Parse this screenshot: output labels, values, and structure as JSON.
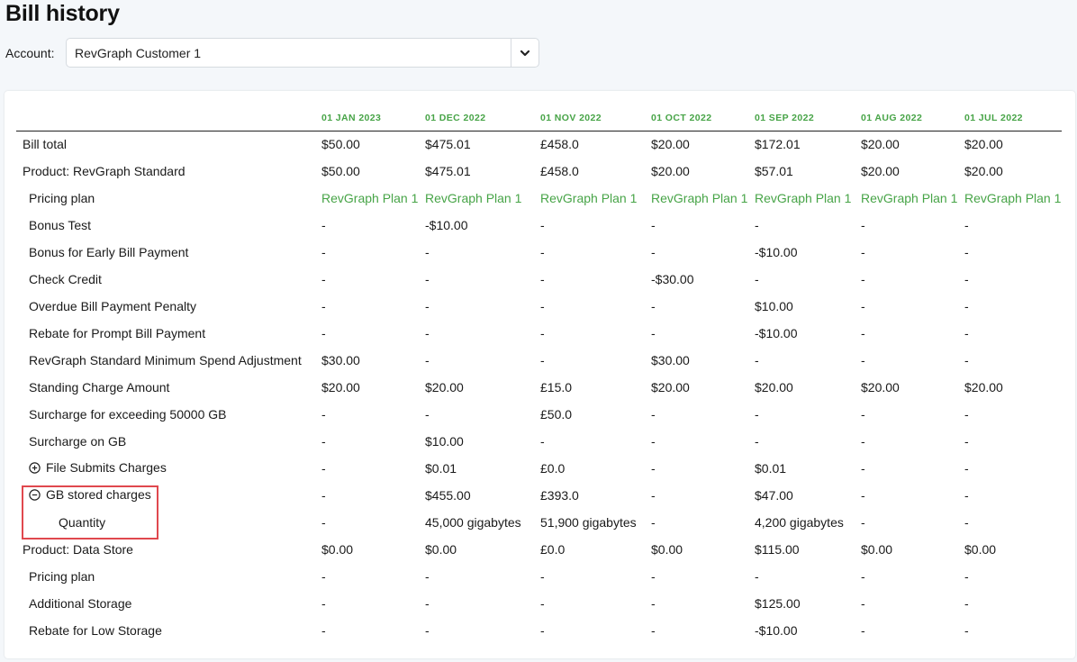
{
  "page": {
    "title": "Bill history"
  },
  "account": {
    "label": "Account:",
    "value": "RevGraph Customer 1"
  },
  "table": {
    "columns": [
      "01 JAN 2023",
      "01 DEC 2022",
      "01 NOV 2022",
      "01 OCT 2022",
      "01 SEP 2022",
      "01 AUG 2022",
      "01 JUL 2022"
    ],
    "rows": [
      {
        "label": "Bill total",
        "level": 0,
        "cells": [
          "$50.00",
          "$475.01",
          "£458.0",
          "$20.00",
          "$172.01",
          "$20.00",
          "$20.00"
        ]
      },
      {
        "label": "Product: RevGraph Standard",
        "level": 0,
        "cells": [
          "$50.00",
          "$475.01",
          "£458.0",
          "$20.00",
          "$57.01",
          "$20.00",
          "$20.00"
        ]
      },
      {
        "label": "Pricing plan",
        "level": 1,
        "link": true,
        "cells": [
          "RevGraph Plan 1",
          "RevGraph Plan 1",
          "RevGraph Plan 1",
          "RevGraph Plan 1",
          "RevGraph Plan 1",
          "RevGraph Plan 1",
          "RevGraph Plan 1"
        ]
      },
      {
        "label": "Bonus Test",
        "level": 1,
        "cells": [
          "-",
          "-$10.00",
          "-",
          "-",
          "-",
          "-",
          "-"
        ]
      },
      {
        "label": "Bonus for Early Bill Payment",
        "level": 1,
        "cells": [
          "-",
          "-",
          "-",
          "-",
          "-$10.00",
          "-",
          "-"
        ]
      },
      {
        "label": "Check Credit",
        "level": 1,
        "cells": [
          "-",
          "-",
          "-",
          "-$30.00",
          "-",
          "-",
          "-"
        ]
      },
      {
        "label": "Overdue Bill Payment Penalty",
        "level": 1,
        "cells": [
          "-",
          "-",
          "-",
          "-",
          "$10.00",
          "-",
          "-"
        ]
      },
      {
        "label": "Rebate for Prompt Bill Payment",
        "level": 1,
        "cells": [
          "-",
          "-",
          "-",
          "-",
          "-$10.00",
          "-",
          "-"
        ]
      },
      {
        "label": "RevGraph Standard Minimum Spend Adjustment",
        "level": 1,
        "cells": [
          "$30.00",
          "-",
          "-",
          "$30.00",
          "-",
          "-",
          "-"
        ]
      },
      {
        "label": "Standing Charge Amount",
        "level": 1,
        "cells": [
          "$20.00",
          "$20.00",
          "£15.0",
          "$20.00",
          "$20.00",
          "$20.00",
          "$20.00"
        ]
      },
      {
        "label": "Surcharge for exceeding 50000 GB",
        "level": 1,
        "cells": [
          "-",
          "-",
          "£50.0",
          "-",
          "-",
          "-",
          "-"
        ]
      },
      {
        "label": "Surcharge on GB",
        "level": 1,
        "cells": [
          "-",
          "$10.00",
          "-",
          "-",
          "-",
          "-",
          "-"
        ]
      },
      {
        "label": "File Submits Charges",
        "level": 1,
        "expander": "expand",
        "cells": [
          "-",
          "$0.01",
          "£0.0",
          "-",
          "$0.01",
          "-",
          "-"
        ]
      },
      {
        "label": "GB stored charges",
        "level": 1,
        "expander": "collapse",
        "cells": [
          "-",
          "$455.00",
          "£393.0",
          "-",
          "$47.00",
          "-",
          "-"
        ]
      },
      {
        "label": "Quantity",
        "level": 2,
        "cells": [
          "-",
          "45,000 gigabytes",
          "51,900 gigabytes",
          "-",
          "4,200 gigabytes",
          "-",
          "-"
        ]
      },
      {
        "label": "Product: Data Store",
        "level": 0,
        "cells": [
          "$0.00",
          "$0.00",
          "£0.0",
          "$0.00",
          "$115.00",
          "$0.00",
          "$0.00"
        ]
      },
      {
        "label": "Pricing plan",
        "level": 1,
        "cells": [
          "-",
          "-",
          "-",
          "-",
          "-",
          "-",
          "-"
        ]
      },
      {
        "label": "Additional Storage",
        "level": 1,
        "cells": [
          "-",
          "-",
          "-",
          "-",
          "$125.00",
          "-",
          "-"
        ]
      },
      {
        "label": "Rebate for Low Storage",
        "level": 1,
        "cells": [
          "-",
          "-",
          "-",
          "-",
          "-$10.00",
          "-",
          "-"
        ]
      }
    ]
  },
  "icons": {
    "dropdown": "chevron-down-icon",
    "expand": "plus-circle-icon",
    "collapse": "minus-circle-icon"
  },
  "colors": {
    "accent_green": "#47a447",
    "highlight_red": "#e0484e"
  }
}
